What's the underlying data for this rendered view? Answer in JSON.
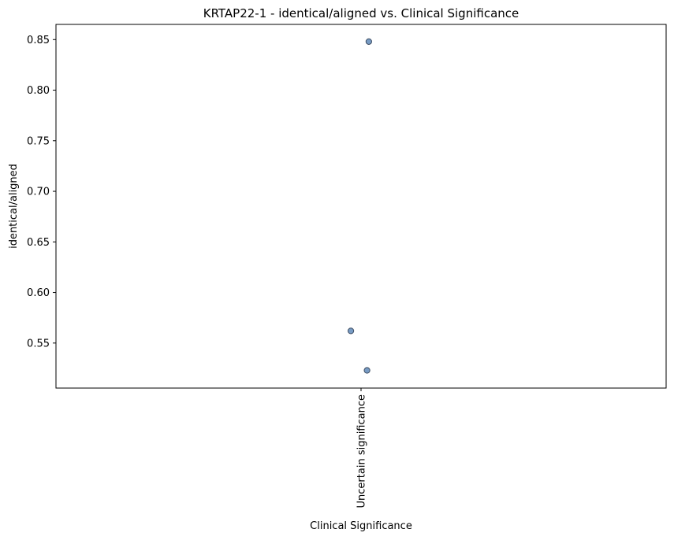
{
  "chart_data": {
    "type": "scatter",
    "title": "KRTAP22-1 - identical/aligned vs. Clinical Significance",
    "xlabel": "Clinical Significance",
    "ylabel": "identical/aligned",
    "categories": [
      "Uncertain significance"
    ],
    "yticks": [
      "0.55",
      "0.60",
      "0.65",
      "0.70",
      "0.75",
      "0.80",
      "0.85"
    ],
    "ylim": [
      0.5055,
      0.865
    ],
    "grid": false,
    "series": [
      {
        "points": [
          {
            "category": "Uncertain significance",
            "jitter": -0.17,
            "y": 0.562
          },
          {
            "category": "Uncertain significance",
            "jitter": 0.1,
            "y": 0.523
          },
          {
            "category": "Uncertain significance",
            "jitter": 0.13,
            "y": 0.848
          }
        ],
        "color": "#4a7ab0",
        "edge_color": "#3d4d63"
      }
    ]
  }
}
